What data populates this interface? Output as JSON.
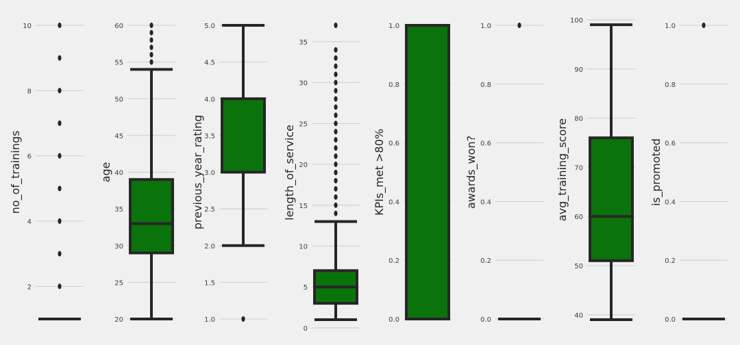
{
  "chart_data": [
    {
      "type": "box",
      "ylabel": "no_of_trainings",
      "ylim": [
        1,
        10
      ],
      "ticks": [
        2,
        4,
        6,
        8,
        10
      ],
      "tick_labels": [
        "2",
        "4",
        "6",
        "8",
        "10"
      ],
      "box": {
        "q1": 1,
        "median": 1,
        "q3": 1,
        "whisker_low": 1,
        "whisker_high": 1
      },
      "outliers": [
        2,
        3,
        4,
        5,
        6,
        7,
        8,
        9,
        10
      ]
    },
    {
      "type": "box",
      "ylabel": "age",
      "ylim": [
        20,
        60
      ],
      "ticks": [
        20,
        25,
        30,
        35,
        40,
        45,
        50,
        55,
        60
      ],
      "tick_labels": [
        "20",
        "25",
        "30",
        "35",
        "40",
        "45",
        "50",
        "55",
        "60"
      ],
      "box": {
        "q1": 29,
        "median": 33,
        "q3": 39,
        "whisker_low": 20,
        "whisker_high": 54
      },
      "outliers": [
        55,
        56,
        57,
        58,
        59,
        60
      ]
    },
    {
      "type": "box",
      "ylabel": "previous_year_rating",
      "ylim": [
        1,
        5
      ],
      "ticks": [
        1.0,
        1.5,
        2.0,
        2.5,
        3.0,
        3.5,
        4.0,
        4.5,
        5.0
      ],
      "tick_labels": [
        "1.0",
        "1.5",
        "2.0",
        "2.5",
        "3.0",
        "3.5",
        "4.0",
        "4.5",
        "5.0"
      ],
      "box": {
        "q1": 3,
        "median": 3,
        "q3": 4,
        "whisker_low": 2,
        "whisker_high": 5
      },
      "outliers": [
        1
      ]
    },
    {
      "type": "box",
      "ylabel": "length_of_service",
      "ylim": [
        1,
        37
      ],
      "ticks": [
        0,
        5,
        10,
        15,
        20,
        25,
        30,
        35
      ],
      "tick_labels": [
        "0",
        "5",
        "10",
        "15",
        "20",
        "25",
        "30",
        "35"
      ],
      "box": {
        "q1": 3,
        "median": 5,
        "q3": 7,
        "whisker_low": 1,
        "whisker_high": 13
      },
      "outliers": [
        14,
        15,
        16,
        17,
        18,
        19,
        20,
        21,
        22,
        23,
        24,
        25,
        26,
        27,
        28,
        29,
        30,
        31,
        32,
        33,
        34,
        37
      ]
    },
    {
      "type": "box",
      "ylabel": "KPIs_met >80%",
      "ylim": [
        0,
        1
      ],
      "ticks": [
        0.0,
        0.2,
        0.4,
        0.6,
        0.8,
        1.0
      ],
      "tick_labels": [
        "0.0",
        "0.2",
        "0.4",
        "0.6",
        "0.8",
        "1.0"
      ],
      "box": {
        "q1": 0,
        "median": 0,
        "q3": 1,
        "whisker_low": 0,
        "whisker_high": 1
      },
      "outliers": []
    },
    {
      "type": "box",
      "ylabel": "awards_won?",
      "ylim": [
        0,
        1
      ],
      "ticks": [
        0.0,
        0.2,
        0.4,
        0.6,
        0.8,
        1.0
      ],
      "tick_labels": [
        "0.0",
        "0.2",
        "0.4",
        "0.6",
        "0.8",
        "1.0"
      ],
      "box": {
        "q1": 0,
        "median": 0,
        "q3": 0,
        "whisker_low": 0,
        "whisker_high": 0
      },
      "outliers": [
        1
      ]
    },
    {
      "type": "box",
      "ylabel": "avg_training_score",
      "ylim": [
        39,
        100
      ],
      "ticks": [
        40,
        50,
        60,
        70,
        80,
        90,
        100
      ],
      "tick_labels": [
        "40",
        "50",
        "60",
        "70",
        "80",
        "90",
        "100"
      ],
      "box": {
        "q1": 51,
        "median": 60,
        "q3": 76,
        "whisker_low": 39,
        "whisker_high": 99
      },
      "outliers": []
    },
    {
      "type": "box",
      "ylabel": "is_promoted",
      "ylim": [
        0,
        1
      ],
      "ticks": [
        0.0,
        0.2,
        0.4,
        0.6,
        0.8,
        1.0
      ],
      "tick_labels": [
        "0.0",
        "0.2",
        "0.4",
        "0.6",
        "0.8",
        "1.0"
      ],
      "box": {
        "q1": 0,
        "median": 0,
        "q3": 0,
        "whisker_low": 0,
        "whisker_high": 0
      },
      "outliers": [
        1
      ]
    }
  ],
  "colors": {
    "background": "#f0f0f0",
    "box_fill": "#0b730b",
    "line": "#262626",
    "grid": "#cbcbcb",
    "tick_text": "#404040",
    "label_text": "#262626"
  }
}
